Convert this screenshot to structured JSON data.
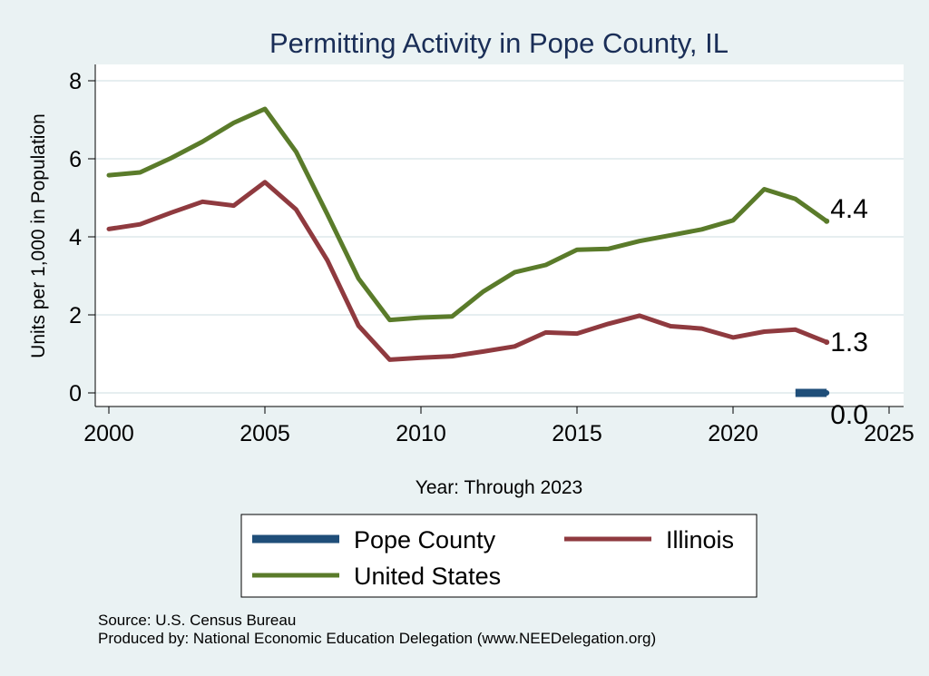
{
  "chart_data": {
    "type": "line",
    "title": "Permitting Activity in Pope County, IL",
    "xlabel": "Year: Through 2023",
    "ylabel": "Units per 1,000 in Population",
    "xlim": [
      2000,
      2025
    ],
    "ylim": [
      0,
      8
    ],
    "xticks": [
      "2000",
      "2005",
      "2010",
      "2015",
      "2020",
      "2025"
    ],
    "yticks": [
      "0",
      "2",
      "4",
      "6",
      "8"
    ],
    "grid": true,
    "legend_placement": "bottom",
    "series": [
      {
        "name": "Pope County",
        "color": "#1f4e79",
        "x": [
          2022,
          2023
        ],
        "values": [
          0.0,
          0.0
        ],
        "end_label": "0.0"
      },
      {
        "name": "Illinois",
        "color": "#8f3a3f",
        "x": [
          2000,
          2001,
          2002,
          2003,
          2004,
          2005,
          2006,
          2007,
          2008,
          2009,
          2010,
          2011,
          2012,
          2013,
          2014,
          2015,
          2016,
          2017,
          2018,
          2019,
          2020,
          2021,
          2022,
          2023
        ],
        "values": [
          4.2,
          4.32,
          4.62,
          4.9,
          4.8,
          5.4,
          4.7,
          3.4,
          1.72,
          0.85,
          0.9,
          0.94,
          1.06,
          1.19,
          1.55,
          1.52,
          1.77,
          1.98,
          1.71,
          1.65,
          1.42,
          1.57,
          1.62,
          1.3
        ],
        "end_label": "1.3"
      },
      {
        "name": "United States",
        "color": "#5a7b2a",
        "x": [
          2000,
          2001,
          2002,
          2003,
          2004,
          2005,
          2006,
          2007,
          2008,
          2009,
          2010,
          2011,
          2012,
          2013,
          2014,
          2015,
          2016,
          2017,
          2018,
          2019,
          2020,
          2021,
          2022,
          2023
        ],
        "values": [
          5.58,
          5.65,
          6.02,
          6.44,
          6.92,
          7.28,
          6.18,
          4.58,
          2.93,
          1.87,
          1.93,
          1.96,
          2.6,
          3.09,
          3.28,
          3.67,
          3.69,
          3.89,
          4.04,
          4.19,
          4.42,
          5.22,
          4.97,
          4.4
        ],
        "end_label": "4.4"
      }
    ],
    "legend_order": [
      "Pope County",
      "Illinois",
      "United States"
    ],
    "notes": [
      "Source: U.S. Census Bureau",
      "Produced by: National Economic Education Delegation (www.NEEDelegation.org)"
    ]
  }
}
